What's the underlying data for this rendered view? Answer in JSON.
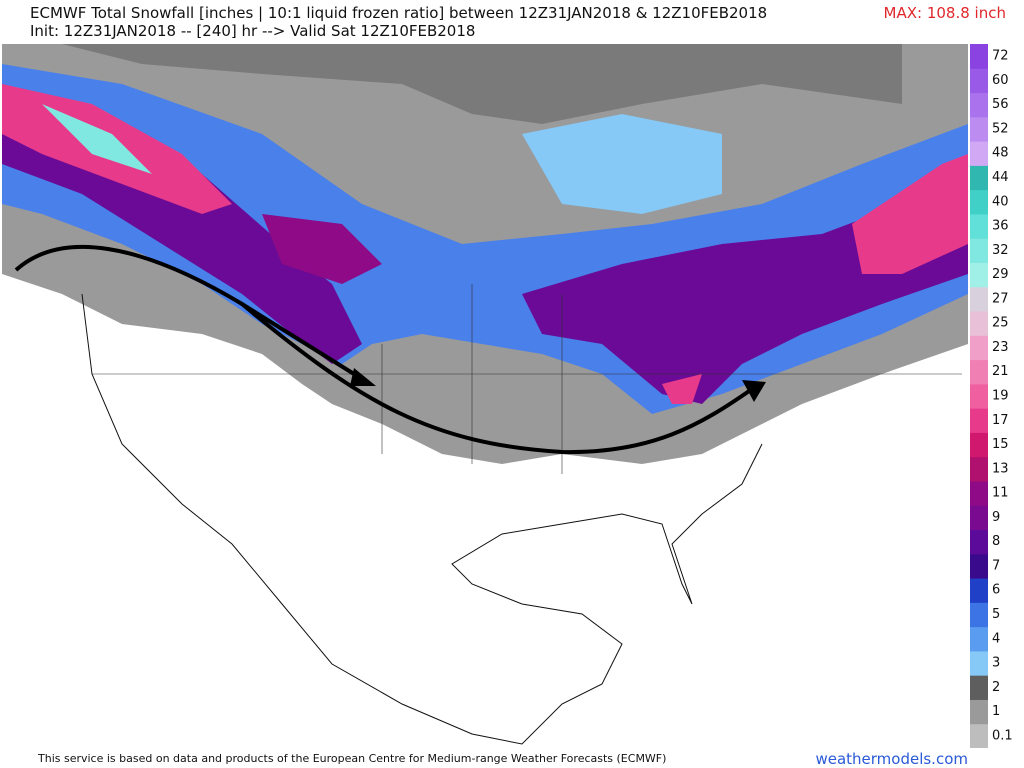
{
  "header": {
    "title": "ECMWF Total Snowfall [inches | 10:1 liquid frozen ratio] between 12Z31JAN2018 & 12Z10FEB2018",
    "subtitle": "Init: 12Z31JAN2018 -- [240] hr --> Valid Sat 12Z10FEB2018",
    "max": "MAX: 108.8 inch"
  },
  "legend": {
    "levels": [
      0.1,
      1,
      2,
      3,
      4,
      5,
      6,
      7,
      8,
      9,
      11,
      13,
      15,
      17,
      19,
      21,
      23,
      25,
      27,
      29,
      32,
      36,
      40,
      44,
      48,
      52,
      56,
      60,
      72
    ],
    "colors": [
      "#bdbdbd",
      "#9a9a9a",
      "#5e5e5e",
      "#86c8f6",
      "#5a9cf0",
      "#3c74e6",
      "#2040c8",
      "#3a0a8c",
      "#5c0a9a",
      "#7a0a90",
      "#8e0a86",
      "#b0106e",
      "#d0186e",
      "#e83a8a",
      "#f060a0",
      "#f080b4",
      "#f0a0c8",
      "#e8c0d8",
      "#d8d0dc",
      "#a0f0e8",
      "#80e8e0",
      "#60e0d8",
      "#40d0c8",
      "#30b8b0",
      "#d0a8f4",
      "#bc8cf0",
      "#aa72ec",
      "#9a5ae8",
      "#8a42e0"
    ]
  },
  "footer": {
    "credit": "This service is based on data and products of the European Centre for Medium-range Weather Forecasts (ECMWF)",
    "site": "weathermodels.com"
  }
}
